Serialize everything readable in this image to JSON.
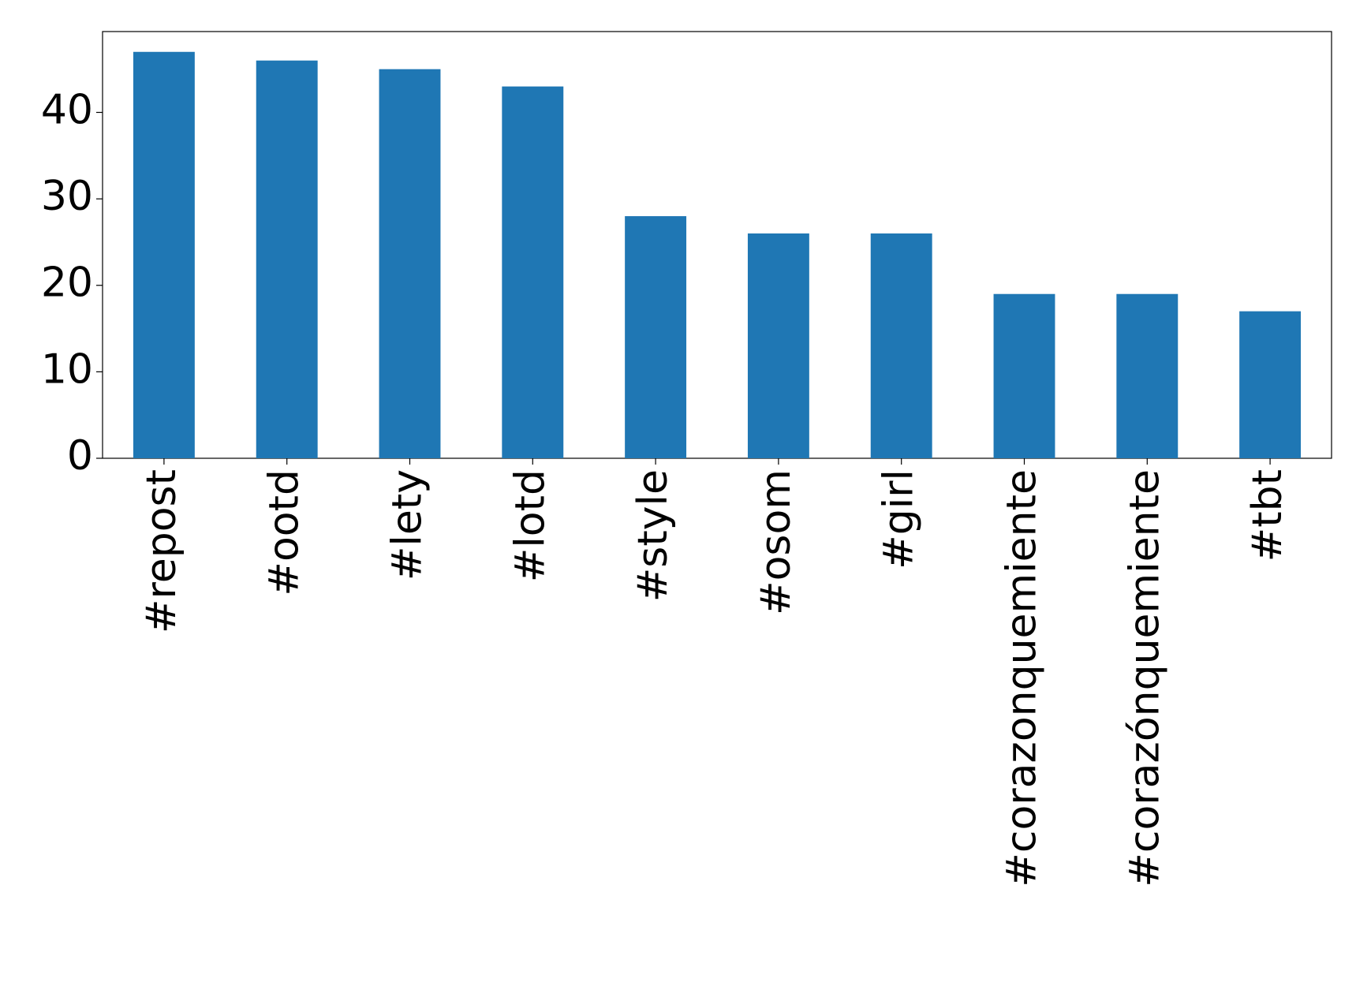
{
  "chart_data": {
    "type": "bar",
    "categories": [
      "#repost",
      "#ootd",
      "#lety",
      "#lotd",
      "#style",
      "#osom",
      "#girl",
      "#corazonquemiente",
      "#corazónquemiente",
      "#tbt"
    ],
    "values": [
      47,
      46,
      45,
      43,
      28,
      26,
      26,
      19,
      19,
      17
    ],
    "color": "#1f77b4",
    "ylim": [
      0,
      49.35
    ],
    "yticks": [
      0,
      10,
      20,
      30,
      40
    ],
    "grid": false
  }
}
